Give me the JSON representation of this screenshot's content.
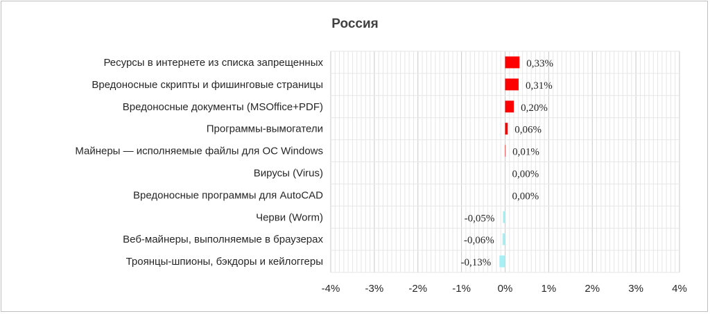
{
  "chart_data": {
    "type": "bar",
    "orientation": "horizontal",
    "title": "Россия",
    "xlabel": "",
    "ylabel": "",
    "xlim": [
      -4,
      4
    ],
    "x_ticks": [
      "-4%",
      "-3%",
      "-2%",
      "-1%",
      "0%",
      "1%",
      "2%",
      "3%",
      "4%"
    ],
    "grid": true,
    "categories": [
      "Ресурсы в интернете из списка запрещенных",
      "Вредоносные скрипты и фишинговые страницы",
      "Вредоносные документы (MSOffice+PDF)",
      "Программы-вымогатели",
      "Майнеры — исполняемые файлы для ОС Windows",
      "Вирусы (Virus)",
      "Вредоносные программы для AutoCAD",
      "Черви (Worm)",
      "Веб-майнеры, выполняемые в браузерах",
      "Троянцы-шпионы, бэкдоры и кейлоггеры"
    ],
    "values": [
      0.33,
      0.31,
      0.2,
      0.06,
      0.01,
      0.0,
      0.0,
      -0.05,
      -0.06,
      -0.13
    ],
    "value_labels": [
      "0,33%",
      "0,31%",
      "0,20%",
      "0,06%",
      "0,01%",
      "0,00%",
      "0,00%",
      "-0,05%",
      "-0,06%",
      "-0,13%"
    ],
    "colors": {
      "positive": "#ff0000",
      "negative": "#a6f0f5",
      "grid": "#d9d9d9",
      "axis": "#d9d9d9"
    }
  }
}
